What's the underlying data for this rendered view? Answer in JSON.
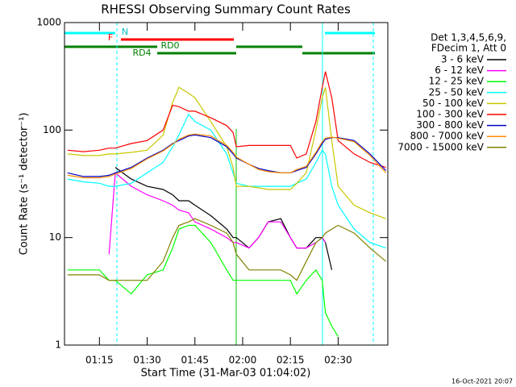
{
  "chart_data": {
    "type": "line",
    "title": "RHESSI Observing Summary Count Rates",
    "xlabel": "Start Time (31-Mar-03 01:04:02)",
    "ylabel": "Count Rate (s⁻¹ detector⁻¹)",
    "log_y": true,
    "ylim": [
      1,
      1000
    ],
    "yticks": [
      1,
      10,
      100,
      1000
    ],
    "xlim": [
      4.03,
      105.6
    ],
    "xticks": [
      {
        "value": 15,
        "label": "01:15"
      },
      {
        "value": 30,
        "label": "01:30"
      },
      {
        "value": 45,
        "label": "01:45"
      },
      {
        "value": 60,
        "label": "02:00"
      },
      {
        "value": 75,
        "label": "02:15"
      },
      {
        "value": 90,
        "label": "02:30"
      }
    ],
    "legend_header": [
      "Det 1,3,4,5,6,9,",
      "FDecim 1, Att 0"
    ],
    "legend_position": "right",
    "annotations": [
      "F",
      "N",
      "RD0",
      "RD4"
    ],
    "footer": "16-Oct-2021 20:07",
    "x": [
      5,
      10,
      15,
      18,
      20,
      25,
      30,
      35,
      38,
      40,
      43,
      45,
      50,
      55,
      57,
      58,
      62,
      65,
      68,
      72,
      75,
      77,
      80,
      83,
      85,
      86,
      88,
      90,
      95,
      100,
      105
    ],
    "series": [
      {
        "name": "3 - 6 keV",
        "color": "#000000",
        "values": [
          null,
          null,
          null,
          null,
          45,
          35,
          30,
          28,
          25,
          22,
          22,
          20,
          16,
          12,
          10,
          10,
          8,
          10,
          14,
          15,
          10,
          8,
          8,
          10,
          10,
          9,
          5,
          null,
          null,
          null,
          null
        ]
      },
      {
        "name": "6 - 12 keV",
        "color": "#ff00ff",
        "values": [
          null,
          null,
          null,
          7,
          40,
          30,
          25,
          22,
          20,
          18,
          17,
          14,
          12,
          10,
          9,
          9,
          8,
          10,
          14,
          14,
          10,
          8,
          8,
          9,
          10,
          9,
          null,
          null,
          null,
          null,
          null
        ]
      },
      {
        "name": "12 - 25 keV",
        "color": "#00ff00",
        "values": [
          5,
          5,
          5,
          4,
          4,
          3,
          4.5,
          5,
          8,
          12,
          13,
          13,
          9,
          5,
          4,
          4,
          4,
          4,
          4,
          4,
          4,
          3,
          4,
          5,
          4,
          2,
          1.5,
          1.2,
          null,
          null,
          null
        ]
      },
      {
        "name": "25 - 50 keV",
        "color": "#00ffff",
        "values": [
          35,
          33,
          32,
          30,
          30,
          32,
          40,
          50,
          70,
          90,
          140,
          120,
          100,
          60,
          40,
          32,
          30,
          30,
          30,
          30,
          30,
          32,
          35,
          50,
          65,
          60,
          30,
          20,
          12,
          9,
          8
        ]
      },
      {
        "name": "50 - 100 keV",
        "color": "#c8c800",
        "values": [
          60,
          58,
          58,
          60,
          60,
          62,
          65,
          90,
          180,
          250,
          220,
          200,
          120,
          70,
          45,
          30,
          30,
          29,
          28,
          28,
          28,
          32,
          40,
          100,
          200,
          250,
          80,
          30,
          20,
          17,
          15
        ]
      },
      {
        "name": "100 - 300 keV",
        "color": "#ff0000",
        "values": [
          65,
          63,
          65,
          68,
          68,
          75,
          80,
          100,
          170,
          165,
          150,
          150,
          130,
          110,
          95,
          70,
          72,
          72,
          72,
          72,
          72,
          55,
          60,
          120,
          250,
          350,
          200,
          80,
          60,
          50,
          45
        ]
      },
      {
        "name": "300 - 800 keV",
        "color": "#0000c8",
        "values": [
          40,
          37,
          37,
          38,
          40,
          45,
          55,
          65,
          75,
          80,
          88,
          90,
          85,
          70,
          60,
          55,
          48,
          44,
          42,
          40,
          40,
          42,
          45,
          60,
          75,
          82,
          85,
          85,
          80,
          60,
          42
        ]
      },
      {
        "name": "800 - 7000 keV",
        "color": "#ff8c00",
        "values": [
          38,
          36,
          36,
          37,
          39,
          44,
          54,
          64,
          74,
          82,
          90,
          92,
          88,
          72,
          62,
          56,
          48,
          43,
          41,
          40,
          40,
          43,
          46,
          62,
          78,
          84,
          86,
          84,
          78,
          58,
          40
        ]
      },
      {
        "name": "7000 - 15000 keV",
        "color": "#808000",
        "values": [
          4.5,
          4.5,
          4.5,
          4,
          4,
          4,
          4,
          6,
          10,
          13,
          14,
          15,
          13,
          11,
          9,
          7,
          5,
          5,
          5,
          5,
          4.5,
          4,
          6,
          9,
          10,
          11,
          12,
          13,
          11,
          8,
          6
        ]
      }
    ]
  }
}
